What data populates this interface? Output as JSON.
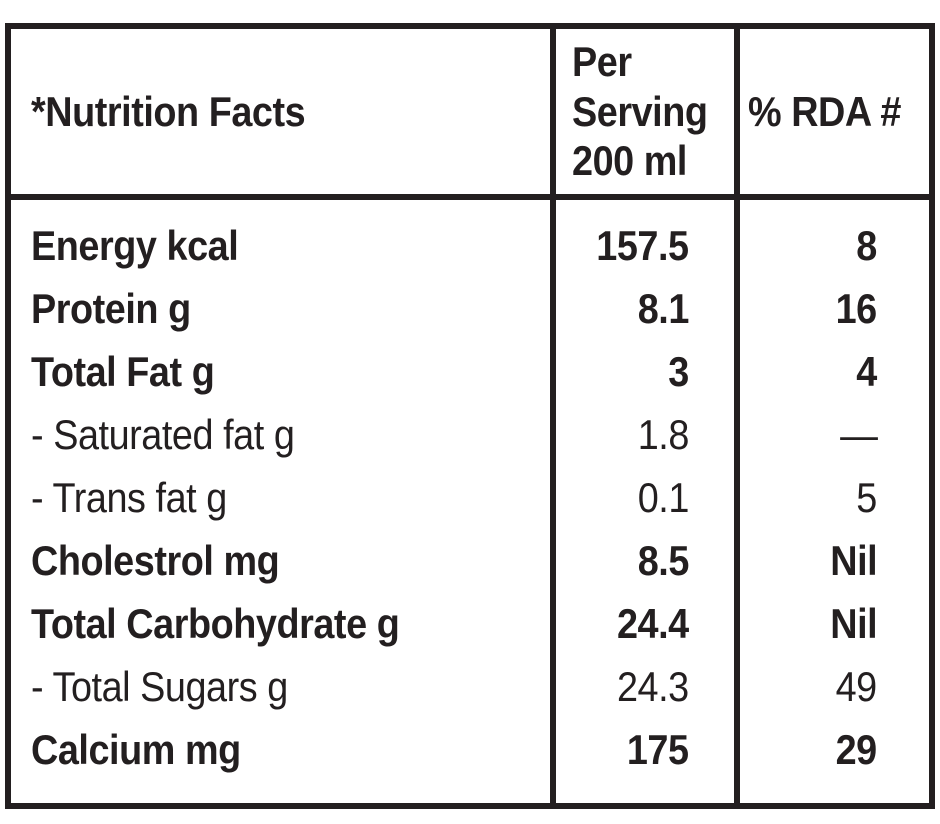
{
  "page": {
    "background": "#ffffff"
  },
  "table": {
    "border_color": "#231f20",
    "text_color": "#231f20",
    "header": {
      "title": "*Nutrition Facts",
      "per_serving": "Per\nServing\n200 ml",
      "rda": "% RDA #"
    },
    "rows": [
      {
        "label": "Energy kcal",
        "per_serving": "157.5",
        "rda": "8"
      },
      {
        "label": "Protein g",
        "per_serving": "8.1",
        "rda": "16"
      },
      {
        "label": "Total Fat g",
        "per_serving": "3",
        "rda": "4"
      },
      {
        "label": "- Saturated fat g",
        "per_serving": "1.8",
        "rda": "—"
      },
      {
        "label": "- Trans fat g",
        "per_serving": "0.1",
        "rda": "5"
      },
      {
        "label": "Cholestrol mg",
        "per_serving": "8.5",
        "rda": "Nil"
      },
      {
        "label": "Total Carbohydrate g",
        "per_serving": "24.4",
        "rda": "Nil"
      },
      {
        "label": "- Total Sugars g",
        "per_serving": "24.3",
        "rda": "49"
      },
      {
        "label": "Calcium mg",
        "per_serving": "175",
        "rda": "29"
      }
    ]
  }
}
